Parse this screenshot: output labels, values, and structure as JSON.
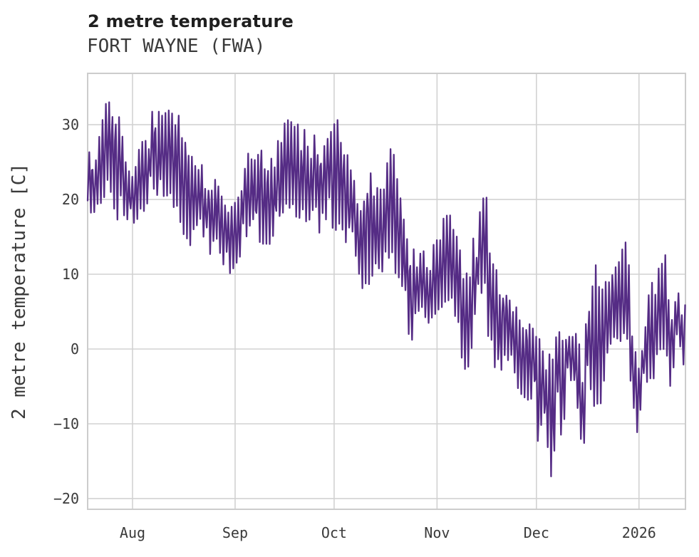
{
  "chart_data": {
    "type": "line",
    "title": "2 metre temperature",
    "subtitle": "FORT WAYNE (FWA)",
    "ylabel": "2 metre temperature [C]",
    "xlabel": "",
    "grid": true,
    "legend": "none",
    "background": "#ffffff",
    "line_color": "#552c85",
    "grid_color": "#d2d2d2",
    "spine_color": "#cccccc",
    "tick_color": "#3a3a3a",
    "title_color": "#1f1f1f",
    "subtitle_color": "#3a3a3a",
    "xlim": [
      0,
      180.6
    ],
    "ylim": [
      -21.43,
      36.86
    ],
    "x_ticks": [
      {
        "pos": 13.56,
        "label": "Aug"
      },
      {
        "pos": 44.55,
        "label": "Sep"
      },
      {
        "pos": 74.46,
        "label": "Oct"
      },
      {
        "pos": 105.55,
        "label": "Nov"
      },
      {
        "pos": 135.57,
        "label": "Dec"
      },
      {
        "pos": 166.56,
        "label": "2026"
      }
    ],
    "y_ticks": [
      {
        "val": 30,
        "label": "30"
      },
      {
        "val": 20,
        "label": "20"
      },
      {
        "val": 10,
        "label": "10"
      },
      {
        "val": 0,
        "label": "0"
      },
      {
        "val": -10,
        "label": "−10"
      },
      {
        "val": -20,
        "label": "−20"
      }
    ],
    "series": [
      {
        "name": "2 metre temperature",
        "unit": "C",
        "sampling": "hourly temperature trace, values estimated as daily min/max envelope keyframes [day, min, max] with day 0 at left edge of plot (mid-July); vertical gridlines mark month starts",
        "envelope_day_min_max": [
          [
            0,
            19,
            27
          ],
          [
            2,
            17,
            25.5
          ],
          [
            4,
            19,
            30
          ],
          [
            6,
            21,
            34.5
          ],
          [
            8,
            18,
            32
          ],
          [
            10,
            16,
            32
          ],
          [
            12,
            17,
            24.5
          ],
          [
            14,
            16.5,
            24
          ],
          [
            16,
            17,
            28
          ],
          [
            18,
            19,
            31
          ],
          [
            20,
            20,
            32.5
          ],
          [
            24,
            20,
            32.5
          ],
          [
            27,
            18,
            32
          ],
          [
            29,
            15,
            30.5
          ],
          [
            31,
            13.5,
            25.5
          ],
          [
            33,
            16,
            27.5
          ],
          [
            35,
            14,
            24
          ],
          [
            37,
            12,
            22
          ],
          [
            39,
            13,
            24
          ],
          [
            41,
            11,
            20.5
          ],
          [
            43,
            9.5,
            18.5
          ],
          [
            45,
            10,
            21.5
          ],
          [
            47,
            13,
            25
          ],
          [
            49,
            15,
            27.5
          ],
          [
            52,
            14,
            27.5
          ],
          [
            55,
            13,
            26
          ],
          [
            57,
            15,
            27.5
          ],
          [
            59,
            17,
            31
          ],
          [
            61,
            18,
            31
          ],
          [
            63,
            17,
            30.5
          ],
          [
            65,
            17.5,
            30
          ],
          [
            67,
            16,
            28.5
          ],
          [
            69,
            15,
            29
          ],
          [
            71,
            15,
            29.5
          ],
          [
            73,
            16,
            30
          ],
          [
            75,
            15,
            31
          ],
          [
            77,
            13.5,
            31
          ],
          [
            79,
            14,
            25
          ],
          [
            81,
            12,
            22
          ],
          [
            83,
            7.5,
            20.5
          ],
          [
            85,
            8,
            24
          ],
          [
            87,
            10,
            23.5
          ],
          [
            89,
            10,
            21
          ],
          [
            92,
            10.5,
            29.5
          ],
          [
            94,
            9,
            21.5
          ],
          [
            96,
            7,
            19
          ],
          [
            97.5,
            -1,
            15
          ],
          [
            99,
            4.5,
            13
          ],
          [
            101,
            5,
            13.5
          ],
          [
            103,
            3,
            13
          ],
          [
            106,
            4.5,
            16
          ],
          [
            108,
            6,
            18.5
          ],
          [
            110,
            4.5,
            18.5
          ],
          [
            112,
            1.5,
            16
          ],
          [
            114,
            -4.5,
            10
          ],
          [
            116,
            -1,
            13.5
          ],
          [
            118,
            2,
            20
          ],
          [
            120,
            2.5,
            23
          ],
          [
            122,
            0,
            13.5
          ],
          [
            124,
            -5.5,
            10
          ],
          [
            126,
            -1,
            8
          ],
          [
            128,
            -3,
            7
          ],
          [
            130,
            -5.5,
            5.5
          ],
          [
            133,
            -8,
            4.5
          ],
          [
            135,
            -6,
            3
          ],
          [
            136,
            -13.5,
            2
          ],
          [
            138,
            -9,
            2
          ],
          [
            140,
            -19,
            0
          ],
          [
            142,
            -9,
            3.3
          ],
          [
            143.5,
            -14,
            3
          ],
          [
            145,
            -4,
            3.5
          ],
          [
            147,
            -5,
            3
          ],
          [
            148.5,
            -11.6,
            1
          ],
          [
            149.5,
            -17,
            -1
          ],
          [
            151,
            -6,
            6
          ],
          [
            153,
            -9,
            12.5
          ],
          [
            155,
            -9.5,
            10.5
          ],
          [
            157,
            -1.5,
            9
          ],
          [
            159,
            0,
            10.5
          ],
          [
            161,
            0,
            14
          ],
          [
            163,
            1,
            17.5
          ],
          [
            164.5,
            -8,
            2
          ],
          [
            166.5,
            -13,
            -2
          ],
          [
            168,
            -5,
            1.5
          ],
          [
            170,
            -4.5,
            9.5
          ],
          [
            172,
            -4,
            9.5
          ],
          [
            174,
            -2,
            16
          ],
          [
            176,
            -6.5,
            5
          ],
          [
            178,
            0,
            8
          ],
          [
            180.6,
            -5.4,
            7.1
          ]
        ]
      }
    ]
  }
}
